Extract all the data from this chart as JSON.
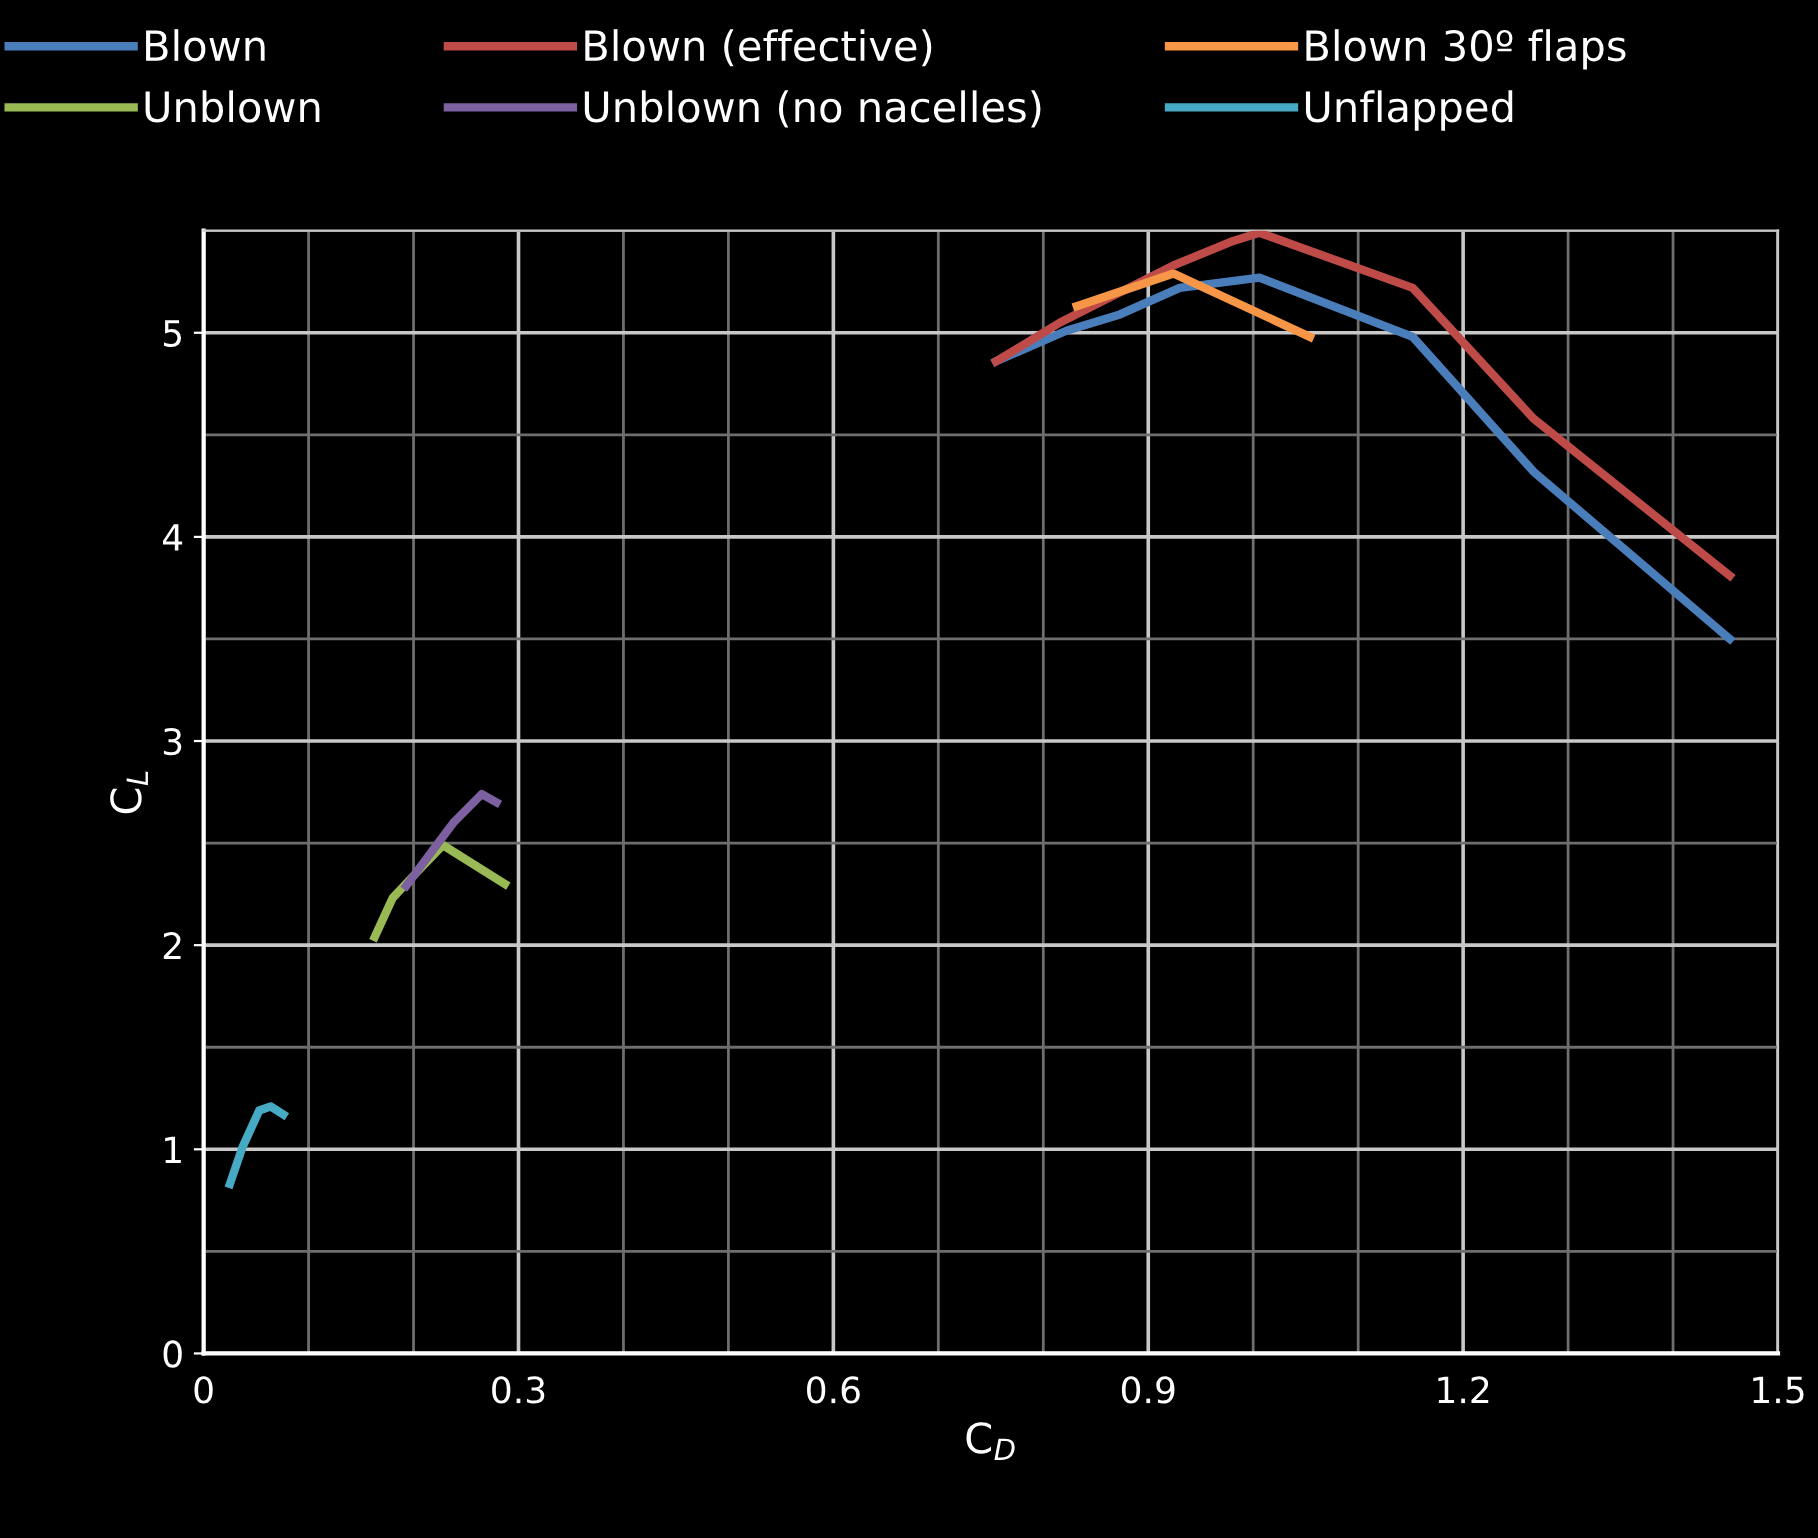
{
  "chart_data": {
    "type": "line",
    "xlabel": "C$_{D}$",
    "ylabel": "C$_{L}$",
    "xlim": [
      0,
      1.5
    ],
    "ylim": [
      0,
      5.5
    ],
    "xticks": [
      0,
      0.3,
      0.6,
      0.9,
      1.2,
      1.5
    ],
    "yticks": [
      0,
      1,
      2,
      3,
      4,
      5
    ],
    "grid": true,
    "legend": "top",
    "marker": "none",
    "line_style": "solid",
    "series": [
      {
        "name": "Blown",
        "color": "#4a7ebb",
        "x": [
          0.755,
          0.822,
          0.873,
          0.93,
          1.006,
          1.152,
          1.267,
          1.454
        ],
        "values": [
          4.86,
          5.01,
          5.09,
          5.22,
          5.27,
          4.98,
          4.32,
          3.5
        ]
      },
      {
        "name": "Blown (effective)",
        "color": "#be4b48",
        "x": [
          0.755,
          0.816,
          0.924,
          0.981,
          1.006,
          1.152,
          1.267,
          1.454
        ],
        "values": [
          4.86,
          5.05,
          5.33,
          5.45,
          5.49,
          5.22,
          4.58,
          3.81
        ]
      },
      {
        "name": "Blown 30º flaps",
        "color": "#f79646",
        "x": [
          0.832,
          0.924,
          1.054
        ],
        "values": [
          5.13,
          5.29,
          4.98
        ]
      },
      {
        "name": "Unblown",
        "color": "#98b954",
        "x": [
          0.163,
          0.18,
          0.2,
          0.228,
          0.287
        ],
        "values": [
          2.04,
          2.23,
          2.34,
          2.49,
          2.3
        ]
      },
      {
        "name": "Unblown (no nacelles)",
        "color": "#7d60a0",
        "x": [
          0.193,
          0.219,
          0.238,
          0.265,
          0.279
        ],
        "values": [
          2.29,
          2.47,
          2.6,
          2.74,
          2.7
        ]
      },
      {
        "name": "Unflapped",
        "color": "#46aac5",
        "x": [
          0.025,
          0.037,
          0.053,
          0.064,
          0.076
        ],
        "values": [
          0.83,
          1.01,
          1.19,
          1.21,
          1.17
        ]
      }
    ]
  }
}
